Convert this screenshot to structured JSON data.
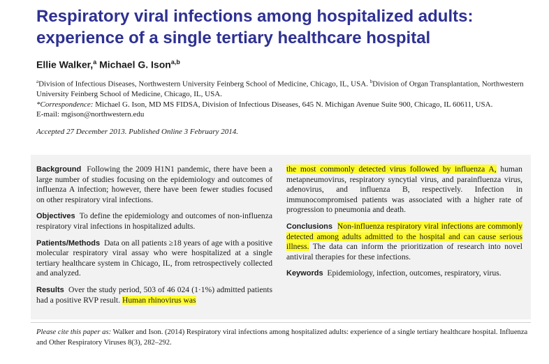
{
  "title": "Respiratory viral infections among hospitalized adults: experience of a single tertiary healthcare hospital",
  "authors": [
    {
      "name": "Ellie Walker,",
      "sup": "a"
    },
    {
      "name": "Michael G. Ison",
      "sup": "a,b"
    }
  ],
  "affiliations": {
    "a_sup": "a",
    "a_text": "Division of Infectious Diseases, Northwestern University Feinberg School of Medicine, Chicago, IL, USA.",
    "b_sup": "b",
    "b_text": "Division of Organ Transplantation, Northwestern University Feinberg School of Medicine, Chicago, IL, USA.",
    "corr_label": "*Correspondence:",
    "corr_text": " Michael G. Ison, MD MS FIDSA, Division of Infectious Diseases, 645 N. Michigan Avenue Suite 900, Chicago, IL 60611, USA.",
    "email": "E-mail: mgison@northwestern.edu"
  },
  "accepted": "Accepted 27 December 2013. Published Online 3 February 2014.",
  "abstract": {
    "background": {
      "heading": "Background",
      "text": "Following the 2009 H1N1 pandemic, there have been a large number of studies focusing on the epidemiology and outcomes of influenza A infection; however, there have been fewer studies focused on other respiratory viral infections."
    },
    "objectives": {
      "heading": "Objectives",
      "text": "To define the epidemiology and outcomes of non-influenza respiratory viral infections in hospitalized adults."
    },
    "methods": {
      "heading": "Patients/Methods",
      "text": "Data on all patients ≥18 years of age with a positive molecular respiratory viral assay who were hospitalized at a single tertiary healthcare system in Chicago, IL, from retrospectively collected and analyzed."
    },
    "results": {
      "heading": "Results",
      "text": "Over the study period, 503 of 46 024 (1·1%) admitted patients had a positive RVP result.",
      "highlight": "Human rhinovirus was",
      "continued_highlight": "the most commonly detected virus followed by influenza A,",
      "continued_text": "human metapneumovirus, respiratory syncytial virus, and parainfluenza virus, adenovirus, and influenza B, respectively. Infection in immunocompromised patients was associated with a higher rate of progression to pneumonia and death."
    },
    "conclusions": {
      "heading": "Conclusions",
      "highlight": "Non-influenza respiratory viral infections are commonly detected among adults admitted to the hospital and can cause serious illness.",
      "text": "The data can inform the prioritization of research into novel antiviral therapies for these infections."
    },
    "keywords": {
      "heading": "Keywords",
      "text": "Epidemiology, infection, outcomes, respiratory, virus."
    }
  },
  "citation": {
    "lead": "Please cite this paper as:",
    "text": "Walker and Ison. (2014) Respiratory viral infections among hospitalized adults: experience of a single tertiary healthcare hospital. Influenza and Other Respiratory Viruses 8(3), 282–292."
  },
  "colors": {
    "title": "#2e3192",
    "highlight": "#fffb2e",
    "box": "#f2f2f2"
  }
}
